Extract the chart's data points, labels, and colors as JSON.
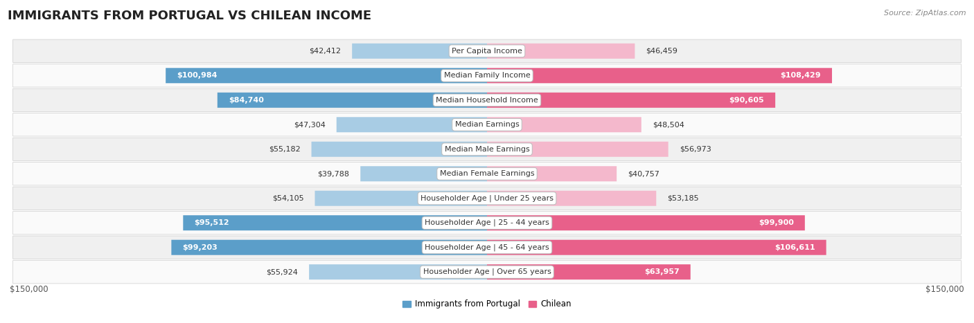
{
  "title": "IMMIGRANTS FROM PORTUGAL VS CHILEAN INCOME",
  "source": "Source: ZipAtlas.com",
  "categories": [
    "Per Capita Income",
    "Median Family Income",
    "Median Household Income",
    "Median Earnings",
    "Median Male Earnings",
    "Median Female Earnings",
    "Householder Age | Under 25 years",
    "Householder Age | 25 - 44 years",
    "Householder Age | 45 - 64 years",
    "Householder Age | Over 65 years"
  ],
  "portugal_values": [
    42412,
    100984,
    84740,
    47304,
    55182,
    39788,
    54105,
    95512,
    99203,
    55924
  ],
  "chilean_values": [
    46459,
    108429,
    90605,
    48504,
    56973,
    40757,
    53185,
    99900,
    106611,
    63957
  ],
  "portugal_labels": [
    "$42,412",
    "$100,984",
    "$84,740",
    "$47,304",
    "$55,182",
    "$39,788",
    "$54,105",
    "$95,512",
    "$99,203",
    "$55,924"
  ],
  "chilean_labels": [
    "$46,459",
    "$108,429",
    "$90,605",
    "$48,504",
    "$56,973",
    "$40,757",
    "$53,185",
    "$99,900",
    "$106,611",
    "$63,957"
  ],
  "max_value": 150000,
  "portugal_color_light": "#a8cce4",
  "portugal_color_dark": "#5b9ec9",
  "chilean_color_light": "#f4b8cc",
  "chilean_color_dark": "#e8608a",
  "row_bg_odd": "#f0f0f0",
  "row_bg_even": "#fafafa",
  "axis_label_left": "$150,000",
  "axis_label_right": "$150,000",
  "legend_portugal": "Immigrants from Portugal",
  "legend_chilean": "Chilean",
  "title_fontsize": 13,
  "source_fontsize": 8,
  "bar_label_fontsize": 8,
  "category_fontsize": 8,
  "axis_fontsize": 8.5,
  "legend_fontsize": 8.5,
  "portugal_inside_threshold": 60000,
  "chilean_inside_threshold": 60000
}
